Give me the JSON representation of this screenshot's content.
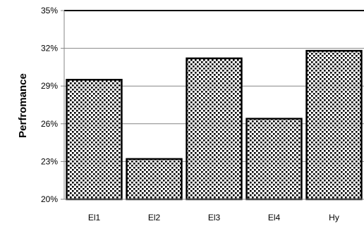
{
  "chart_data": {
    "type": "bar",
    "title": "",
    "xlabel": "",
    "ylabel": "Perfromance",
    "categories": [
      "El1",
      "El2",
      "El3",
      "El4",
      "Hy"
    ],
    "values": [
      29.5,
      23.2,
      31.2,
      26.4,
      31.8
    ],
    "ylim": [
      20,
      35
    ],
    "yticks": [
      20,
      23,
      26,
      29,
      32,
      35
    ],
    "ytick_format": "percent",
    "grid": "horizontal",
    "legend": "none",
    "bar_fill": "black-dot-pattern",
    "colors": {
      "bar_outline": "#000000",
      "grid": "#868686",
      "axis": "#868686"
    }
  }
}
